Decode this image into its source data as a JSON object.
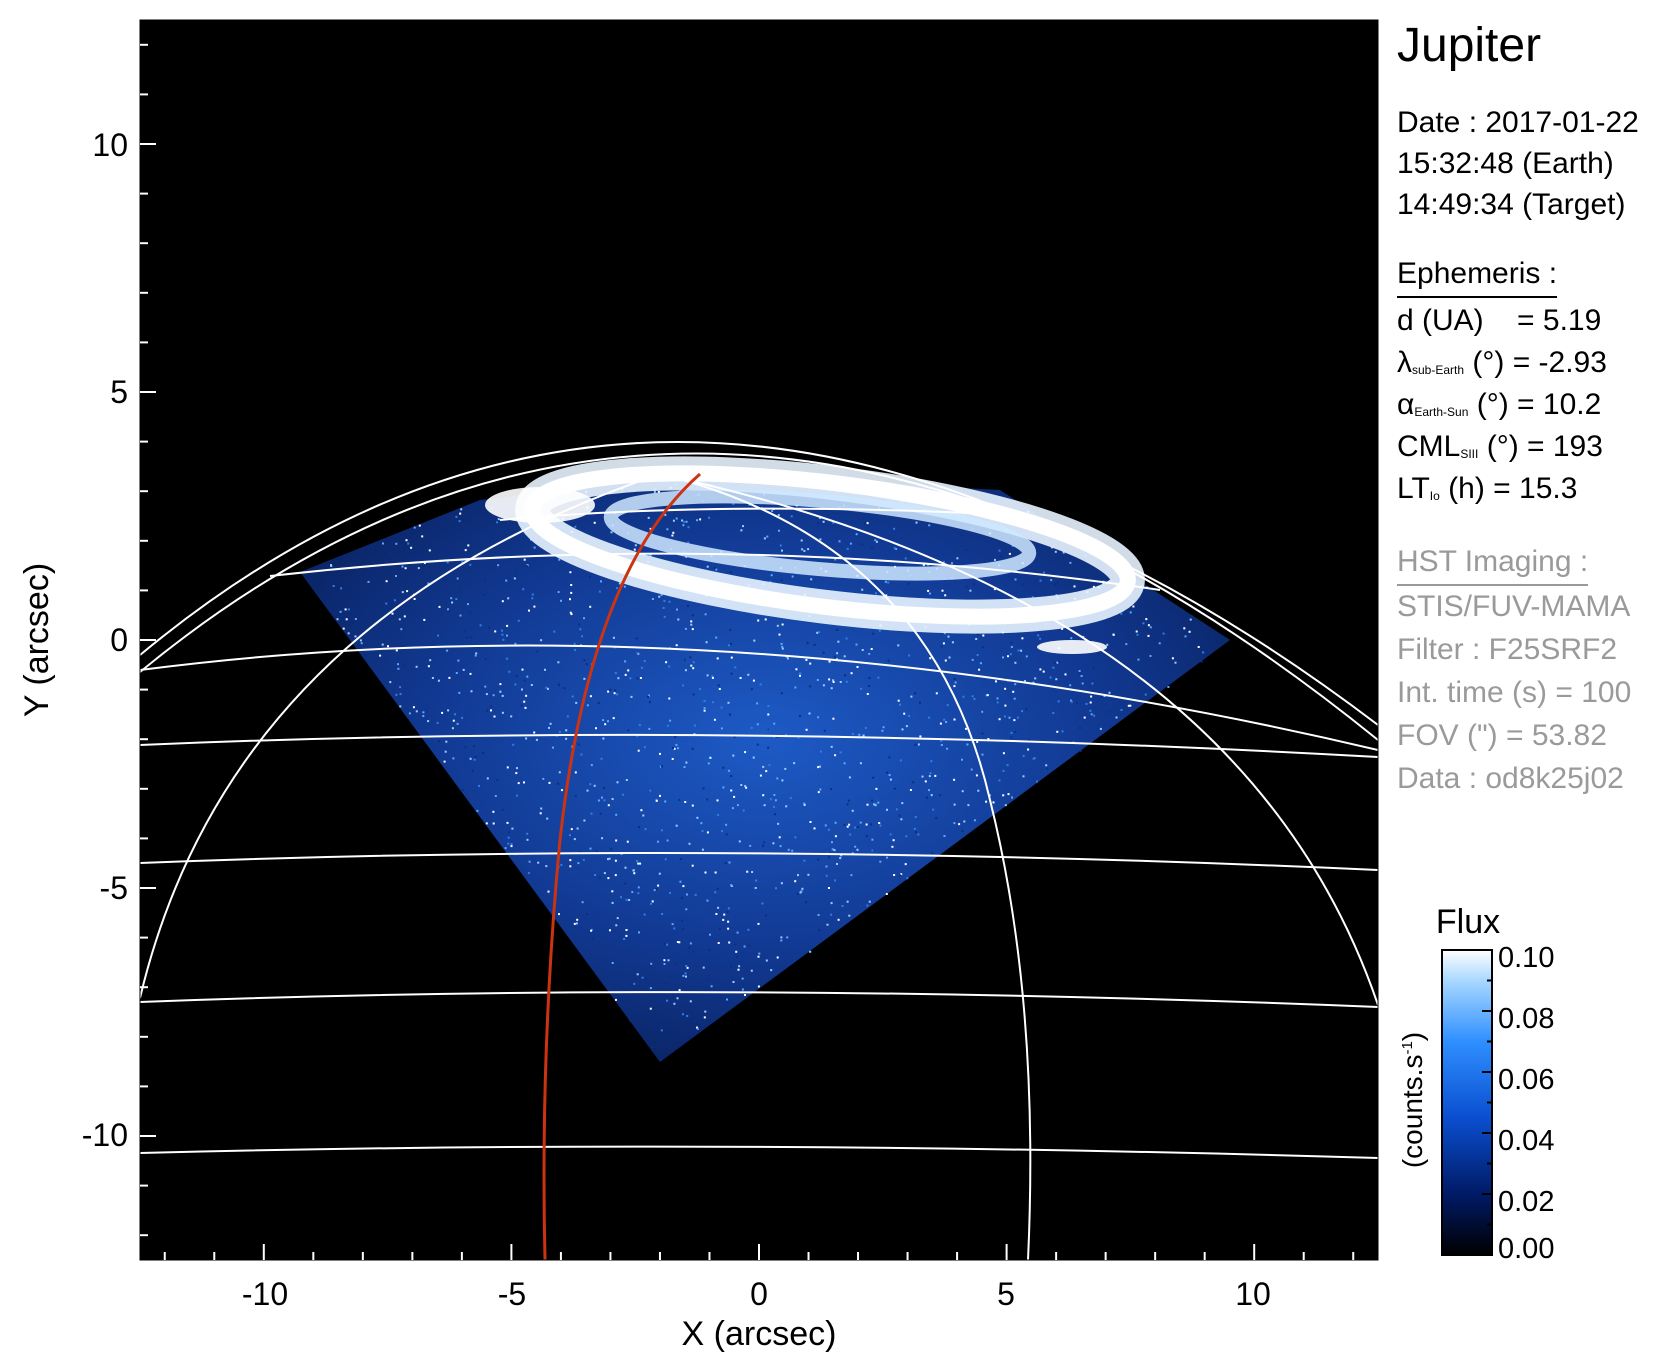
{
  "chart_data": {
    "type": "heatmap",
    "xlabel": "X (arcsec)",
    "ylabel": "Y (arcsec)",
    "xlim": [
      -12.5,
      12.5
    ],
    "ylim": [
      -12.5,
      12.5
    ],
    "xticks": [
      "-10",
      "-5",
      "0",
      "5",
      "10"
    ],
    "yticks": [
      "10",
      "5",
      "0",
      "-5",
      "-10"
    ],
    "colorbar": {
      "title": "Flux",
      "label": "(counts.s",
      "label_exp": "-1",
      "label_close": ")",
      "ticks": [
        "0.10",
        "0.08",
        "0.06",
        "0.04",
        "0.02",
        "0.00"
      ],
      "range": [
        0.0,
        0.1
      ],
      "colors": [
        "#000000",
        "#001a66",
        "#0a4fd0",
        "#2f8fff",
        "#a8d8ff",
        "#ffffff"
      ]
    },
    "grid_color": "#ffffff",
    "track_color": "#cc3311"
  },
  "info": {
    "target": "Jupiter",
    "date_line": "Date : 2017-01-22",
    "earth_time": "15:32:48 (Earth)",
    "target_time": "14:49:34 (Target)",
    "ephemeris_header": "Ephemeris :",
    "ephem": {
      "d_label": "d (UA)",
      "d_value": "= 5.19",
      "lat_symbol": "λ",
      "lat_sub": "sub-Earth",
      "lat_value": "(°) = -2.93",
      "phase_symbol": "α",
      "phase_sub": "Earth-Sun",
      "phase_value": "(°) = 10.2",
      "cml_symbol": "CML",
      "cml_sub": "SIII",
      "cml_value": "(°) = 193",
      "lt_symbol": "LT",
      "lt_sub": "Io",
      "lt_value": "(h) = 15.3"
    },
    "hst_header": "HST Imaging :",
    "instrument": "STIS/FUV-MAMA",
    "filter": "Filter : F25SRF2",
    "int_time": "Int. time (s) = 100",
    "fov": "FOV (\") = 53.82",
    "dataset": "Data : od8k25j02"
  }
}
